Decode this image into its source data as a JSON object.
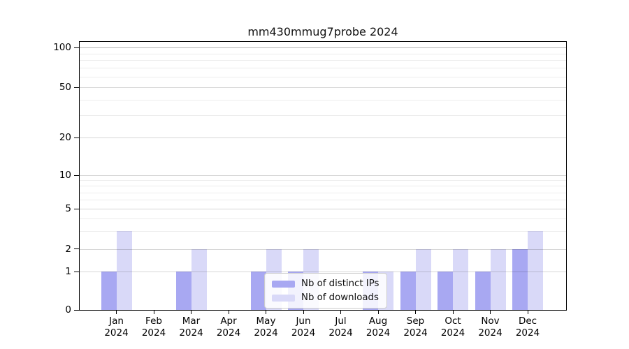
{
  "chart_data": {
    "type": "bar",
    "title": "mm430mmug7probe 2024",
    "categories": [
      "Jan",
      "Feb",
      "Mar",
      "Apr",
      "May",
      "Jun",
      "Jul",
      "Aug",
      "Sep",
      "Oct",
      "Nov",
      "Dec"
    ],
    "year_label": "2024",
    "series": [
      {
        "name": "Nb of distinct IPs",
        "color": "#a8a8f2",
        "values": [
          1,
          0,
          1,
          0,
          1,
          1,
          0,
          1,
          1,
          1,
          1,
          2
        ]
      },
      {
        "name": "Nb of downloads",
        "color": "#d9d9f8",
        "values": [
          3,
          0,
          2,
          0,
          2,
          2,
          0,
          1,
          2,
          2,
          2,
          3
        ]
      }
    ],
    "y_axis": {
      "major_ticks": [
        0,
        1,
        2,
        5,
        10,
        20,
        50,
        100
      ],
      "minor_gridlines": [
        3,
        4,
        6,
        7,
        8,
        9,
        30,
        40,
        60,
        70,
        80,
        90
      ],
      "scale": "log-like",
      "range": [
        0,
        100
      ]
    },
    "legend": {
      "position": "inside-bottom-center"
    },
    "grid": true
  },
  "colors": {
    "axis": "#000000",
    "background": "#ffffff"
  }
}
